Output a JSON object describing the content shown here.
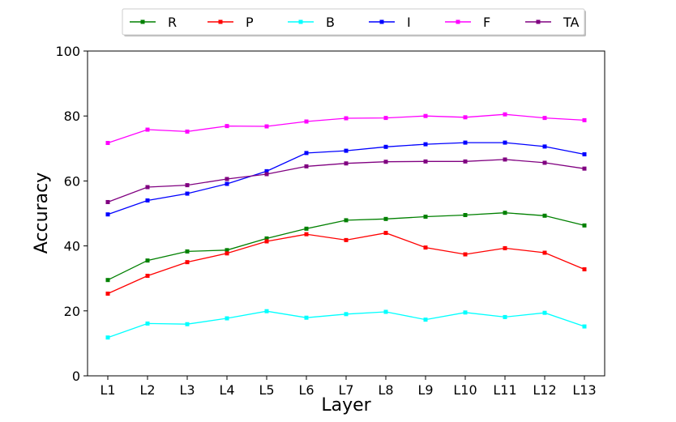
{
  "chart_data": {
    "type": "line",
    "categories": [
      "L1",
      "L2",
      "L3",
      "L4",
      "L5",
      "L6",
      "L7",
      "L8",
      "L9",
      "L10",
      "L11",
      "L12",
      "L13"
    ],
    "xlabel": "Layer",
    "ylabel": "Accuracy",
    "ylim": [
      0,
      100
    ],
    "yticks": [
      0,
      20,
      40,
      60,
      80,
      100
    ],
    "grid": false,
    "legend_position": "top",
    "series": [
      {
        "name": "R",
        "color": "#008000",
        "values": [
          29.5,
          35.5,
          38.3,
          38.7,
          42.3,
          45.3,
          47.9,
          48.3,
          49.0,
          49.5,
          50.2,
          49.3,
          46.3
        ]
      },
      {
        "name": "P",
        "color": "#ff0000",
        "values": [
          25.3,
          30.8,
          35.0,
          37.7,
          41.4,
          43.6,
          41.8,
          44.0,
          39.5,
          37.4,
          39.3,
          37.9,
          32.8
        ]
      },
      {
        "name": "B",
        "color": "#00ffff",
        "values": [
          11.8,
          16.1,
          15.9,
          17.7,
          19.9,
          17.9,
          19.0,
          19.7,
          17.3,
          19.5,
          18.1,
          19.4,
          15.2
        ]
      },
      {
        "name": "I",
        "color": "#0000ff",
        "values": [
          49.7,
          54.0,
          56.1,
          59.1,
          63.0,
          68.6,
          69.3,
          70.5,
          71.3,
          71.8,
          71.8,
          70.6,
          68.2
        ]
      },
      {
        "name": "F",
        "color": "#ff00ff",
        "values": [
          71.7,
          75.8,
          75.2,
          76.9,
          76.8,
          78.3,
          79.3,
          79.4,
          80.0,
          79.6,
          80.5,
          79.4,
          78.7
        ]
      },
      {
        "name": "TA",
        "color": "#800080",
        "values": [
          53.5,
          58.1,
          58.7,
          60.6,
          62.1,
          64.5,
          65.4,
          65.9,
          66.0,
          66.0,
          66.6,
          65.6,
          63.8
        ]
      }
    ]
  }
}
